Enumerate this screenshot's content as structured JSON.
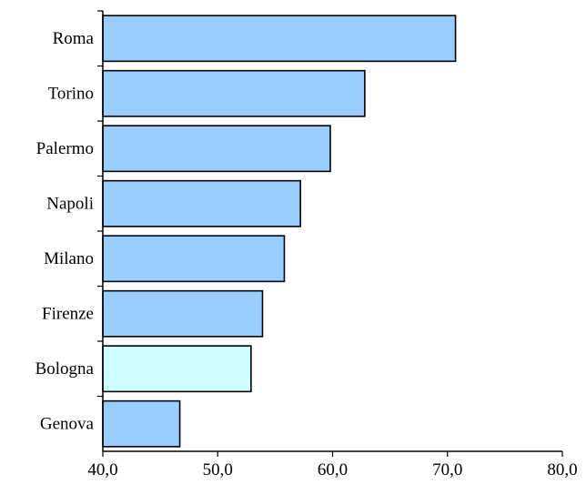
{
  "chart_data": {
    "type": "bar",
    "orientation": "horizontal",
    "title": "",
    "xlabel": "",
    "ylabel": "",
    "categories": [
      "Roma",
      "Torino",
      "Palermo",
      "Napoli",
      "Milano",
      "Firenze",
      "Bologna",
      "Genova"
    ],
    "values": [
      70.7,
      62.8,
      59.8,
      57.2,
      55.8,
      53.9,
      52.9,
      46.7
    ],
    "xlim": [
      40,
      80
    ],
    "xticks": [
      "40,0",
      "50,0",
      "60,0",
      "70,0",
      "80,0"
    ],
    "xtick_values": [
      40,
      50,
      60,
      70,
      80
    ],
    "grid": false,
    "legend": "none",
    "colors": {
      "bar": "#99ccff",
      "highlight": "#ccffff",
      "highlight_category": "Bologna",
      "outline": "#000000"
    }
  }
}
